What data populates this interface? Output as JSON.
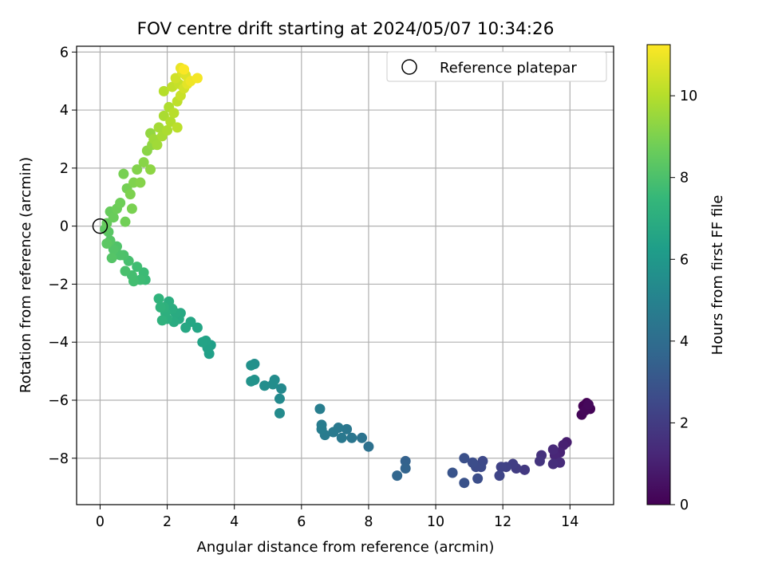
{
  "chart_data": {
    "type": "scatter",
    "title": "FOV centre drift starting at 2024/05/07 10:34:26",
    "xlabel": "Angular distance from reference (arcmin)",
    "ylabel": "Rotation from reference (arcmin)",
    "xlim": [
      -0.7,
      15.3
    ],
    "ylim": [
      -9.6,
      6.2
    ],
    "xticks": [
      0,
      2,
      4,
      6,
      8,
      10,
      12,
      14
    ],
    "yticks": [
      -8,
      -6,
      -4,
      -2,
      0,
      2,
      4,
      6
    ],
    "grid": true,
    "legend": {
      "position": "top-right",
      "entries": [
        "Reference platepar"
      ]
    },
    "reference_point": {
      "x": 0,
      "y": 0,
      "label": "Reference platepar"
    },
    "colorbar": {
      "label": "Hours from first FF file",
      "range": [
        0,
        11.25
      ],
      "ticks": [
        0,
        2,
        4,
        6,
        8,
        10
      ],
      "colormap": "viridis"
    },
    "series": [
      {
        "points": [
          [
            14.5,
            -6.1,
            0.0
          ],
          [
            14.4,
            -6.2,
            0.05
          ],
          [
            14.6,
            -6.3,
            0.1
          ],
          [
            14.35,
            -6.5,
            0.15
          ],
          [
            14.45,
            -6.35,
            0.2
          ],
          [
            14.55,
            -6.15,
            0.25
          ],
          [
            13.9,
            -7.45,
            0.9
          ],
          [
            13.8,
            -7.55,
            1.0
          ],
          [
            13.7,
            -7.8,
            1.1
          ],
          [
            13.55,
            -7.9,
            1.2
          ],
          [
            13.5,
            -7.7,
            1.3
          ],
          [
            13.7,
            -8.15,
            1.4
          ],
          [
            13.5,
            -8.2,
            1.5
          ],
          [
            13.15,
            -7.9,
            1.6
          ],
          [
            13.1,
            -8.1,
            1.7
          ],
          [
            12.65,
            -8.4,
            1.9
          ],
          [
            12.4,
            -8.35,
            2.0
          ],
          [
            12.3,
            -8.2,
            2.1
          ],
          [
            12.1,
            -8.3,
            2.2
          ],
          [
            11.95,
            -8.3,
            2.25
          ],
          [
            11.9,
            -8.6,
            2.35
          ],
          [
            11.4,
            -8.1,
            2.5
          ],
          [
            11.35,
            -8.3,
            2.55
          ],
          [
            11.2,
            -8.3,
            2.6
          ],
          [
            11.1,
            -8.15,
            2.65
          ],
          [
            11.25,
            -8.7,
            2.7
          ],
          [
            10.85,
            -8.0,
            2.8
          ],
          [
            10.85,
            -8.85,
            2.85
          ],
          [
            10.5,
            -8.5,
            2.95
          ],
          [
            9.1,
            -8.1,
            3.5
          ],
          [
            9.1,
            -8.35,
            3.6
          ],
          [
            8.85,
            -8.6,
            3.7
          ],
          [
            8.0,
            -7.6,
            4.2
          ],
          [
            7.8,
            -7.3,
            4.3
          ],
          [
            7.5,
            -7.3,
            4.4
          ],
          [
            7.35,
            -7.0,
            4.45
          ],
          [
            7.2,
            -7.3,
            4.5
          ],
          [
            7.1,
            -6.95,
            4.55
          ],
          [
            6.95,
            -7.1,
            4.6
          ],
          [
            6.7,
            -7.2,
            4.65
          ],
          [
            6.6,
            -6.85,
            4.7
          ],
          [
            6.6,
            -7.0,
            4.75
          ],
          [
            6.55,
            -6.3,
            4.8
          ],
          [
            5.4,
            -5.6,
            5.3
          ],
          [
            5.35,
            -5.95,
            5.35
          ],
          [
            5.35,
            -6.45,
            5.4
          ],
          [
            5.2,
            -5.3,
            5.45
          ],
          [
            5.15,
            -5.45,
            5.5
          ],
          [
            4.9,
            -5.5,
            5.55
          ],
          [
            4.6,
            -4.75,
            5.6
          ],
          [
            4.5,
            -4.8,
            5.65
          ],
          [
            4.6,
            -5.3,
            5.7
          ],
          [
            4.5,
            -5.35,
            5.75
          ],
          [
            3.3,
            -4.1,
            6.3
          ],
          [
            3.25,
            -4.4,
            6.35
          ],
          [
            3.2,
            -4.2,
            6.4
          ],
          [
            3.15,
            -3.95,
            6.45
          ],
          [
            3.05,
            -4.0,
            6.5
          ],
          [
            2.9,
            -3.5,
            6.6
          ],
          [
            2.7,
            -3.3,
            6.65
          ],
          [
            2.55,
            -3.5,
            6.7
          ],
          [
            2.4,
            -3.0,
            6.75
          ],
          [
            2.35,
            -3.2,
            6.8
          ],
          [
            2.25,
            -3.0,
            6.85
          ],
          [
            2.2,
            -3.3,
            6.9
          ],
          [
            2.15,
            -2.85,
            6.95
          ],
          [
            2.05,
            -2.6,
            7.0
          ],
          [
            2.0,
            -3.2,
            7.05
          ],
          [
            1.95,
            -3.0,
            7.1
          ],
          [
            1.9,
            -2.8,
            7.15
          ],
          [
            1.85,
            -3.25,
            7.2
          ],
          [
            1.8,
            -2.8,
            7.25
          ],
          [
            1.75,
            -2.5,
            7.3
          ],
          [
            1.35,
            -1.85,
            7.6
          ],
          [
            1.3,
            -1.6,
            7.65
          ],
          [
            1.2,
            -1.85,
            7.7
          ],
          [
            1.1,
            -1.4,
            7.75
          ],
          [
            1.0,
            -1.9,
            7.8
          ],
          [
            0.95,
            -1.7,
            7.85
          ],
          [
            0.85,
            -1.2,
            7.9
          ],
          [
            0.75,
            -1.55,
            7.95
          ],
          [
            0.7,
            -1.0,
            8.0
          ],
          [
            0.6,
            -1.0,
            8.05
          ],
          [
            0.5,
            -0.7,
            8.1
          ],
          [
            0.4,
            -0.8,
            8.15
          ],
          [
            0.35,
            -1.1,
            8.2
          ],
          [
            0.3,
            -0.5,
            8.25
          ],
          [
            0.25,
            -0.2,
            8.3
          ],
          [
            0.2,
            -0.6,
            8.35
          ],
          [
            0.15,
            -0.1,
            8.4
          ],
          [
            0.2,
            0.1,
            8.55
          ],
          [
            0.3,
            0.5,
            8.6
          ],
          [
            0.4,
            0.3,
            8.65
          ],
          [
            0.5,
            0.6,
            8.7
          ],
          [
            0.6,
            0.8,
            8.75
          ],
          [
            0.75,
            0.15,
            8.8
          ],
          [
            0.8,
            1.3,
            8.85
          ],
          [
            0.7,
            1.8,
            8.9
          ],
          [
            0.95,
            0.6,
            8.95
          ],
          [
            0.9,
            1.1,
            9.0
          ],
          [
            1.0,
            1.5,
            9.05
          ],
          [
            1.1,
            1.95,
            9.1
          ],
          [
            1.2,
            1.5,
            9.15
          ],
          [
            1.3,
            2.2,
            9.2
          ],
          [
            1.4,
            2.6,
            9.25
          ],
          [
            1.5,
            1.95,
            9.3
          ],
          [
            1.55,
            2.8,
            9.35
          ],
          [
            1.5,
            3.2,
            9.4
          ],
          [
            1.6,
            3.0,
            9.6
          ],
          [
            1.7,
            2.8,
            9.65
          ],
          [
            1.75,
            3.4,
            9.7
          ],
          [
            1.85,
            3.1,
            9.75
          ],
          [
            1.9,
            3.8,
            9.8
          ],
          [
            2.0,
            3.3,
            9.85
          ],
          [
            2.05,
            4.1,
            9.9
          ],
          [
            2.1,
            3.6,
            9.95
          ],
          [
            1.9,
            4.65,
            10.0
          ],
          [
            2.2,
            3.9,
            10.05
          ],
          [
            2.3,
            3.4,
            10.1
          ],
          [
            2.3,
            4.3,
            10.15
          ],
          [
            2.15,
            4.8,
            10.2
          ],
          [
            2.35,
            4.9,
            10.3
          ],
          [
            2.4,
            4.5,
            10.35
          ],
          [
            2.25,
            5.1,
            10.45
          ],
          [
            2.5,
            4.75,
            10.5
          ],
          [
            2.45,
            5.3,
            10.6
          ],
          [
            2.55,
            5.2,
            10.7
          ],
          [
            2.6,
            4.9,
            10.8
          ],
          [
            2.4,
            5.45,
            10.9
          ],
          [
            2.7,
            5.0,
            11.0
          ],
          [
            2.9,
            5.1,
            11.1
          ],
          [
            2.5,
            5.4,
            11.2
          ]
        ]
      }
    ]
  }
}
